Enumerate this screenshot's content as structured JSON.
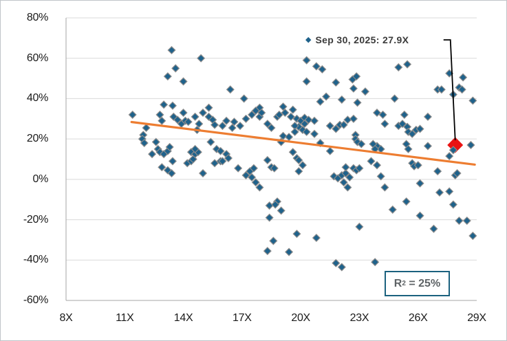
{
  "figure": {
    "border_color": "#c0c4c8",
    "background": "#ffffff"
  },
  "chart_data": {
    "type": "scatter",
    "title": "",
    "xlabel": "",
    "ylabel": "",
    "xlim": [
      8,
      29
    ],
    "ylim": [
      -60,
      80
    ],
    "grid": true,
    "gridline_color": "#d9d9d9",
    "axis_line_color": "#a6a6a6",
    "tick_label_color": "#1a1a1a",
    "x_ticks": [
      {
        "v": 8,
        "label": "8X"
      },
      {
        "v": 11,
        "label": "11X"
      },
      {
        "v": 14,
        "label": "14X"
      },
      {
        "v": 17,
        "label": "17X"
      },
      {
        "v": 20,
        "label": "20X"
      },
      {
        "v": 23,
        "label": "23X"
      },
      {
        "v": 26,
        "label": "26X"
      },
      {
        "v": 29,
        "label": "29X"
      }
    ],
    "y_ticks": [
      {
        "v": 80,
        "label": "80%"
      },
      {
        "v": 60,
        "label": "60%"
      },
      {
        "v": 40,
        "label": "40%"
      },
      {
        "v": 20,
        "label": "20%"
      },
      {
        "v": 0,
        "label": "0%"
      },
      {
        "v": -20,
        "label": "-20%"
      },
      {
        "v": -40,
        "label": "-40%"
      },
      {
        "v": -60,
        "label": "-60%"
      }
    ],
    "series": [
      {
        "name": "scatter-observations",
        "marker": "diamond",
        "fill": "#1f628b",
        "stroke": "#8c8c8c",
        "points": [
          [
            13.4,
            64
          ],
          [
            14.9,
            60
          ],
          [
            13.6,
            55
          ],
          [
            13.2,
            51
          ],
          [
            14.0,
            48.5
          ],
          [
            16.4,
            44.5
          ],
          [
            17.1,
            40
          ],
          [
            15.3,
            35.5
          ],
          [
            13.0,
            37
          ],
          [
            13.45,
            36.5
          ],
          [
            17.9,
            35.5
          ],
          [
            20.3,
            59
          ],
          [
            20.8,
            56
          ],
          [
            21.1,
            54.5
          ],
          [
            25.0,
            55.5
          ],
          [
            25.45,
            57
          ],
          [
            20.3,
            48.5
          ],
          [
            21.8,
            48
          ],
          [
            22.65,
            49.5
          ],
          [
            22.85,
            51
          ],
          [
            22.7,
            45
          ],
          [
            23.3,
            43.5
          ],
          [
            27.6,
            52.5
          ],
          [
            28.3,
            50.5
          ],
          [
            27.0,
            44.5
          ],
          [
            27.2,
            44.5
          ],
          [
            28.1,
            45.5
          ],
          [
            28.25,
            44.5
          ],
          [
            27.8,
            42
          ],
          [
            28.8,
            39
          ],
          [
            24.8,
            40
          ],
          [
            21.0,
            38.5
          ],
          [
            21.3,
            41
          ],
          [
            22.1,
            39.5
          ],
          [
            22.9,
            38
          ],
          [
            19.1,
            36
          ],
          [
            19.6,
            34.5
          ],
          [
            11.4,
            32
          ],
          [
            12.8,
            32
          ],
          [
            12.9,
            29
          ],
          [
            12.1,
            25.5
          ],
          [
            11.95,
            22
          ],
          [
            11.9,
            20
          ],
          [
            12.0,
            18
          ],
          [
            13.5,
            31
          ],
          [
            13.7,
            29.5
          ],
          [
            13.9,
            27.5
          ],
          [
            14.1,
            29
          ],
          [
            14.25,
            28.5
          ],
          [
            14.0,
            33
          ],
          [
            14.6,
            31
          ],
          [
            14.8,
            27.5
          ],
          [
            15.0,
            33
          ],
          [
            15.3,
            31
          ],
          [
            15.5,
            29.5
          ],
          [
            15.6,
            27
          ],
          [
            16.0,
            26.5
          ],
          [
            16.2,
            29
          ],
          [
            16.5,
            25.5
          ],
          [
            16.6,
            28.5
          ],
          [
            16.9,
            26.5
          ],
          [
            17.2,
            30
          ],
          [
            17.5,
            32
          ],
          [
            17.7,
            34
          ],
          [
            17.9,
            31
          ],
          [
            18.0,
            33
          ],
          [
            18.3,
            27.5
          ],
          [
            18.5,
            25.5
          ],
          [
            18.8,
            31
          ],
          [
            14.7,
            24.5
          ],
          [
            12.6,
            18.5
          ],
          [
            12.7,
            15
          ],
          [
            12.4,
            12.5
          ],
          [
            12.8,
            13.5
          ],
          [
            13.0,
            12.5
          ],
          [
            13.2,
            14
          ],
          [
            13.3,
            16
          ],
          [
            12.9,
            6
          ],
          [
            13.2,
            4.5
          ],
          [
            13.4,
            3
          ],
          [
            13.45,
            9
          ],
          [
            14.2,
            8
          ],
          [
            14.4,
            9
          ],
          [
            14.5,
            10
          ],
          [
            14.4,
            13.5
          ],
          [
            14.6,
            12.5
          ],
          [
            14.75,
            13.5
          ],
          [
            14.6,
            15
          ],
          [
            15.0,
            3
          ],
          [
            15.4,
            18.5
          ],
          [
            15.7,
            15
          ],
          [
            15.9,
            14
          ],
          [
            16.2,
            12.5
          ],
          [
            16.3,
            10.5
          ],
          [
            15.9,
            9
          ],
          [
            15.6,
            8
          ],
          [
            16.0,
            9
          ],
          [
            16.8,
            5.5
          ],
          [
            17.2,
            2
          ],
          [
            17.4,
            4
          ],
          [
            17.6,
            5.5
          ],
          [
            17.5,
            1
          ],
          [
            17.7,
            -1.5
          ],
          [
            17.9,
            -4
          ],
          [
            18.3,
            9.5
          ],
          [
            18.5,
            6
          ],
          [
            18.65,
            5.5
          ],
          [
            18.8,
            -11
          ],
          [
            18.9,
            32
          ],
          [
            19.2,
            33
          ],
          [
            19.5,
            31
          ],
          [
            19.8,
            30
          ],
          [
            20.0,
            29
          ],
          [
            20.2,
            30.5
          ],
          [
            20.4,
            29.5
          ],
          [
            20.7,
            29
          ],
          [
            20.2,
            27.5
          ],
          [
            19.9,
            26
          ],
          [
            19.7,
            26.5
          ],
          [
            19.7,
            23.5
          ],
          [
            20.1,
            24.5
          ],
          [
            20.3,
            23.5
          ],
          [
            20.7,
            22.5
          ],
          [
            21.0,
            18
          ],
          [
            19.1,
            21.5
          ],
          [
            19.4,
            21
          ],
          [
            19.0,
            18.5
          ],
          [
            19.6,
            13.5
          ],
          [
            19.8,
            10.5
          ],
          [
            19.9,
            9.5
          ],
          [
            20.1,
            7
          ],
          [
            19.9,
            4
          ],
          [
            21.5,
            26.5
          ],
          [
            21.8,
            25
          ],
          [
            22.0,
            27
          ],
          [
            22.2,
            27
          ],
          [
            22.4,
            29.5
          ],
          [
            22.7,
            30
          ],
          [
            22.8,
            22
          ],
          [
            22.8,
            20
          ],
          [
            22.9,
            18.5
          ],
          [
            23.1,
            17.5
          ],
          [
            21.5,
            14
          ],
          [
            21.7,
            1.5
          ],
          [
            21.9,
            0.5
          ],
          [
            22.1,
            2
          ],
          [
            22.3,
            3
          ],
          [
            22.2,
            -1.5
          ],
          [
            22.4,
            -4
          ],
          [
            22.5,
            1
          ],
          [
            22.7,
            5.5
          ],
          [
            22.85,
            4.5
          ],
          [
            23.0,
            5.5
          ],
          [
            22.3,
            6
          ],
          [
            23.9,
            33
          ],
          [
            24.2,
            32
          ],
          [
            24.3,
            27.5
          ],
          [
            25.0,
            26.5
          ],
          [
            25.2,
            27.5
          ],
          [
            25.3,
            32
          ],
          [
            25.45,
            26
          ],
          [
            25.5,
            23.5
          ],
          [
            25.7,
            22.5
          ],
          [
            25.9,
            24.5
          ],
          [
            26.1,
            25
          ],
          [
            23.9,
            16.5
          ],
          [
            24.1,
            15
          ],
          [
            23.7,
            17.5
          ],
          [
            23.8,
            15
          ],
          [
            23.6,
            9
          ],
          [
            23.9,
            7
          ],
          [
            24.1,
            1.5
          ],
          [
            24.3,
            -4
          ],
          [
            25.4,
            17.5
          ],
          [
            25.5,
            15
          ],
          [
            25.7,
            8
          ],
          [
            25.8,
            6.5
          ],
          [
            26.0,
            7
          ],
          [
            26.1,
            -2
          ],
          [
            25.4,
            -11
          ],
          [
            26.5,
            31
          ],
          [
            26.5,
            16.5
          ],
          [
            27.0,
            4
          ],
          [
            27.1,
            -6.5
          ],
          [
            27.6,
            11.5
          ],
          [
            27.9,
            2
          ],
          [
            28.0,
            3
          ],
          [
            27.6,
            -6
          ],
          [
            28.7,
            17
          ],
          [
            27.8,
            14.5
          ],
          [
            18.4,
            -13
          ],
          [
            18.7,
            -12.5
          ],
          [
            18.4,
            -19
          ],
          [
            18.6,
            -30.5
          ],
          [
            18.3,
            -35.5
          ],
          [
            19.0,
            -15.5
          ],
          [
            19.8,
            -27
          ],
          [
            20.8,
            -29
          ],
          [
            19.4,
            -36
          ],
          [
            23.0,
            -23.5
          ],
          [
            24.7,
            -15
          ],
          [
            26.1,
            -18
          ],
          [
            26.8,
            -24.5
          ],
          [
            28.1,
            -20.5
          ],
          [
            28.5,
            -20.5
          ],
          [
            28.8,
            -28
          ],
          [
            23.8,
            -41
          ],
          [
            21.8,
            -41.5
          ],
          [
            22.1,
            -43.5
          ],
          [
            27.8,
            -12.5
          ]
        ]
      }
    ],
    "highlight_point": {
      "x": 27.9,
      "y": 17,
      "fill": "#ea1313",
      "marker": "diamond-large"
    },
    "overlay_point": {
      "x": 27.8,
      "y": 14.5
    },
    "trendline": {
      "x1": 11.35,
      "y1": 28.4,
      "x2": 28.9,
      "y2": 7.3,
      "color": "#ed7d31"
    },
    "annotation": {
      "bullet": "◆",
      "bullet_color": "#1f628b",
      "text": "Sep 30, 2025: 27.9X",
      "text_color": "#3b3b3b",
      "callout_color": "#000000"
    },
    "r_squared": {
      "base": "R",
      "sup": "2",
      "rest": " = 25%",
      "border_color": "#1a617e",
      "text_color": "#5e6366"
    }
  }
}
